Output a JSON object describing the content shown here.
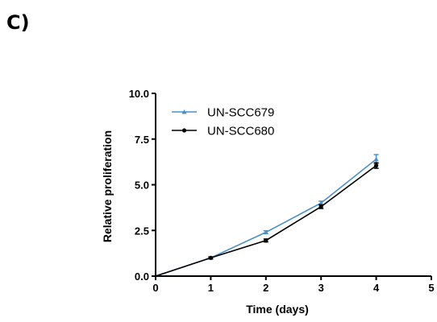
{
  "panel_label": "C)",
  "chart_data": {
    "type": "line",
    "title": "",
    "xlabel": "Time (days)",
    "ylabel": "Relative proliferation",
    "xlim": [
      0,
      5
    ],
    "ylim": [
      0,
      10
    ],
    "xticks": [
      "0",
      "1",
      "2",
      "3",
      "4",
      "5"
    ],
    "yticks": [
      "0.0",
      "2.5",
      "5.0",
      "7.5",
      "10.0"
    ],
    "grid": false,
    "legend_position": "top-left",
    "series": [
      {
        "name": "UN-SCC679",
        "color": "#4a90c8",
        "marker": "triangle",
        "x": [
          0,
          1,
          2,
          3,
          4
        ],
        "y": [
          0,
          1.0,
          2.4,
          4.0,
          6.4
        ],
        "err": [
          0,
          0.05,
          0.08,
          0.1,
          0.25
        ]
      },
      {
        "name": "UN-SCC680",
        "color": "#000000",
        "marker": "circle",
        "x": [
          0,
          1,
          2,
          3,
          4
        ],
        "y": [
          0,
          1.0,
          1.95,
          3.8,
          6.05
        ],
        "err": [
          0,
          0.05,
          0.08,
          0.1,
          0.15
        ]
      }
    ]
  }
}
